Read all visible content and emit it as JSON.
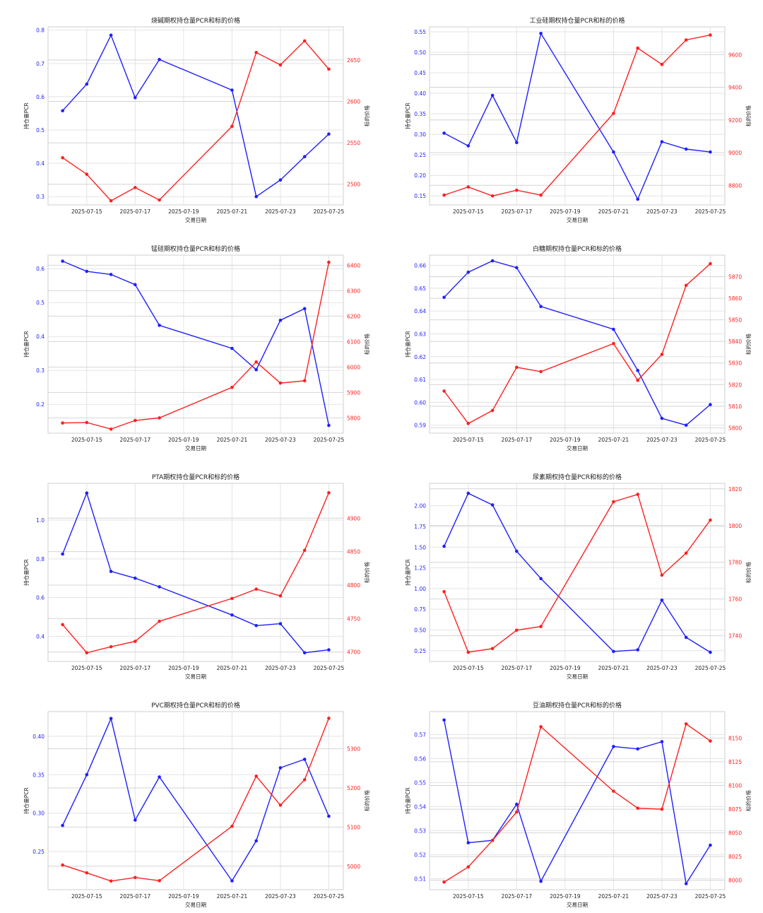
{
  "chart_data": [
    {
      "type": "line",
      "title": "烧碱期权持仓量PCR和标的价格",
      "xlabel": "交易日期",
      "ylabel_left": "持仓量PCR",
      "ylabel_right": "标的价格",
      "x": [
        "2025-07-14",
        "2025-07-15",
        "2025-07-16",
        "2025-07-17",
        "2025-07-18",
        "2025-07-21",
        "2025-07-22",
        "2025-07-23",
        "2025-07-24",
        "2025-07-25"
      ],
      "xticks": [
        "2025-07-15",
        "2025-07-17",
        "2025-07-19",
        "2025-07-21",
        "2025-07-23",
        "2025-07-25"
      ],
      "yticks_left": [
        "0.3",
        "0.4",
        "0.5",
        "0.6",
        "0.7",
        "0.8"
      ],
      "yticks_right": [
        "2500",
        "2550",
        "2600",
        "2650"
      ],
      "ylim_left": [
        0.275,
        0.81
      ],
      "ylim_right": [
        2475,
        2690
      ],
      "grid": true,
      "series": [
        {
          "axis": "left",
          "color": "#1f1fff",
          "values": [
            0.558,
            0.638,
            0.785,
            0.597,
            0.712,
            0.62,
            0.3,
            0.35,
            0.42,
            0.488
          ]
        },
        {
          "axis": "right",
          "color": "#ff1f1f",
          "values": [
            2532,
            2512,
            2480,
            2496,
            2481,
            2570,
            2659,
            2644,
            2673,
            2639
          ]
        }
      ]
    },
    {
      "type": "line",
      "title": "工业硅期权持仓量PCR和标的价格",
      "xlabel": "交易日期",
      "ylabel_left": "持仓量PCR",
      "ylabel_right": "标的价格",
      "x": [
        "2025-07-14",
        "2025-07-15",
        "2025-07-16",
        "2025-07-17",
        "2025-07-18",
        "2025-07-21",
        "2025-07-22",
        "2025-07-23",
        "2025-07-24",
        "2025-07-25"
      ],
      "xticks": [
        "2025-07-15",
        "2025-07-17",
        "2025-07-19",
        "2025-07-21",
        "2025-07-23",
        "2025-07-25"
      ],
      "yticks_left": [
        "0.15",
        "0.20",
        "0.25",
        "0.30",
        "0.35",
        "0.40",
        "0.45",
        "0.50",
        "0.55"
      ],
      "yticks_right": [
        "8800",
        "9000",
        "9200",
        "9400",
        "9600"
      ],
      "ylim_left": [
        0.128,
        0.562
      ],
      "ylim_right": [
        8680,
        9770
      ],
      "grid": true,
      "series": [
        {
          "axis": "left",
          "color": "#1f1fff",
          "values": [
            0.303,
            0.272,
            0.395,
            0.28,
            0.546,
            0.257,
            0.142,
            0.282,
            0.264,
            0.257
          ]
        },
        {
          "axis": "right",
          "color": "#ff1f1f",
          "values": [
            8740,
            8790,
            8735,
            8770,
            8740,
            9240,
            9640,
            9540,
            9690,
            9720
          ]
        }
      ]
    },
    {
      "type": "line",
      "title": "锰硅期权持仓量PCR和标的价格",
      "xlabel": "交易日期",
      "ylabel_left": "持仓量PCR",
      "ylabel_right": "标的价格",
      "x": [
        "2025-07-14",
        "2025-07-15",
        "2025-07-16",
        "2025-07-17",
        "2025-07-18",
        "2025-07-21",
        "2025-07-22",
        "2025-07-23",
        "2025-07-24",
        "2025-07-25"
      ],
      "xticks": [
        "2025-07-15",
        "2025-07-17",
        "2025-07-19",
        "2025-07-21",
        "2025-07-23",
        "2025-07-25"
      ],
      "yticks_left": [
        "0.2",
        "0.3",
        "0.4",
        "0.5",
        "0.6"
      ],
      "yticks_right": [
        "5800",
        "5900",
        "6000",
        "6100",
        "6200",
        "6300",
        "6400"
      ],
      "ylim_left": [
        0.115,
        0.64
      ],
      "ylim_right": [
        5740,
        6440
      ],
      "grid": true,
      "series": [
        {
          "axis": "left",
          "color": "#1f1fff",
          "values": [
            0.622,
            0.592,
            0.583,
            0.553,
            0.433,
            0.365,
            0.302,
            0.448,
            0.482,
            0.138
          ]
        },
        {
          "axis": "right",
          "color": "#ff1f1f",
          "values": [
            5780,
            5782,
            5756,
            5790,
            5800,
            5920,
            6020,
            5937,
            5946,
            6412
          ]
        }
      ]
    },
    {
      "type": "line",
      "title": "白糖期权持仓量PCR和标的价格",
      "xlabel": "交易日期",
      "ylabel_left": "持仓量PCR",
      "ylabel_right": "标的价格",
      "x": [
        "2025-07-14",
        "2025-07-15",
        "2025-07-16",
        "2025-07-17",
        "2025-07-18",
        "2025-07-21",
        "2025-07-22",
        "2025-07-23",
        "2025-07-24",
        "2025-07-25"
      ],
      "xticks": [
        "2025-07-15",
        "2025-07-17",
        "2025-07-19",
        "2025-07-21",
        "2025-07-23",
        "2025-07-25"
      ],
      "yticks_left": [
        "0.59",
        "0.60",
        "0.61",
        "0.62",
        "0.63",
        "0.64",
        "0.65",
        "0.66"
      ],
      "yticks_right": [
        "5800",
        "5810",
        "5820",
        "5830",
        "5840",
        "5850",
        "5860",
        "5870"
      ],
      "ylim_left": [
        0.5865,
        0.6645
      ],
      "ylim_right": [
        5797.5,
        5880
      ],
      "grid": true,
      "series": [
        {
          "axis": "left",
          "color": "#1f1fff",
          "values": [
            0.646,
            0.657,
            0.662,
            0.659,
            0.642,
            0.632,
            0.614,
            0.593,
            0.59,
            0.599
          ]
        },
        {
          "axis": "right",
          "color": "#ff1f1f",
          "values": [
            5817,
            5802,
            5808,
            5828,
            5826,
            5839,
            5822,
            5834,
            5866,
            5876
          ]
        }
      ]
    },
    {
      "type": "line",
      "title": "PTA期权持仓量PCR和标的价格",
      "xlabel": "交易日期",
      "ylabel_left": "持仓量PCR",
      "ylabel_right": "标的价格",
      "x": [
        "2025-07-14",
        "2025-07-15",
        "2025-07-16",
        "2025-07-17",
        "2025-07-18",
        "2025-07-21",
        "2025-07-22",
        "2025-07-23",
        "2025-07-24",
        "2025-07-25"
      ],
      "xticks": [
        "2025-07-15",
        "2025-07-17",
        "2025-07-19",
        "2025-07-21",
        "2025-07-23",
        "2025-07-25"
      ],
      "yticks_left": [
        "0.4",
        "0.6",
        "0.8",
        "1.0"
      ],
      "yticks_right": [
        "4700",
        "4750",
        "4800",
        "4850",
        "4900"
      ],
      "ylim_left": [
        0.27,
        1.19
      ],
      "ylim_right": [
        4686,
        4952
      ],
      "grid": true,
      "series": [
        {
          "axis": "left",
          "color": "#1f1fff",
          "values": [
            0.825,
            1.14,
            0.735,
            0.7,
            0.655,
            0.51,
            0.455,
            0.465,
            0.315,
            0.33
          ]
        },
        {
          "axis": "right",
          "color": "#ff1f1f",
          "values": [
            4741,
            4699,
            4708,
            4716,
            4746,
            4780,
            4794,
            4784,
            4852,
            4938
          ]
        }
      ]
    },
    {
      "type": "line",
      "title": "尿素期权持仓量PCR和标的价格",
      "xlabel": "交易日期",
      "ylabel_left": "持仓量PCR",
      "ylabel_right": "标的价格",
      "x": [
        "2025-07-14",
        "2025-07-15",
        "2025-07-16",
        "2025-07-17",
        "2025-07-18",
        "2025-07-21",
        "2025-07-22",
        "2025-07-23",
        "2025-07-24",
        "2025-07-25"
      ],
      "xticks": [
        "2025-07-15",
        "2025-07-17",
        "2025-07-19",
        "2025-07-21",
        "2025-07-23",
        "2025-07-25"
      ],
      "yticks_left": [
        "0.25",
        "0.50",
        "0.75",
        "1.00",
        "1.25",
        "1.50",
        "1.75",
        "2.00"
      ],
      "yticks_right": [
        "1740",
        "1760",
        "1780",
        "1800",
        "1820"
      ],
      "ylim_left": [
        0.12,
        2.27
      ],
      "ylim_right": [
        1726,
        1823
      ],
      "grid": true,
      "series": [
        {
          "axis": "left",
          "color": "#1f1fff",
          "values": [
            1.51,
            2.15,
            2.01,
            1.45,
            1.12,
            0.24,
            0.26,
            0.86,
            0.41,
            0.23
          ]
        },
        {
          "axis": "right",
          "color": "#ff1f1f",
          "values": [
            1764,
            1731,
            1733,
            1743,
            1745,
            1813,
            1817,
            1773,
            1785,
            1803
          ]
        }
      ]
    },
    {
      "type": "line",
      "title": "PVC期权持仓量PCR和标的价格",
      "xlabel": "交易日期",
      "ylabel_left": "持仓量PCR",
      "ylabel_right": "标的价格",
      "x": [
        "2025-07-14",
        "2025-07-15",
        "2025-07-16",
        "2025-07-17",
        "2025-07-18",
        "2025-07-21",
        "2025-07-22",
        "2025-07-23",
        "2025-07-24",
        "2025-07-25"
      ],
      "xticks": [
        "2025-07-15",
        "2025-07-17",
        "2025-07-19",
        "2025-07-21",
        "2025-07-23",
        "2025-07-25"
      ],
      "yticks_left": [
        "0.25",
        "0.30",
        "0.35",
        "0.40"
      ],
      "yticks_right": [
        "5000",
        "5100",
        "5200",
        "5300"
      ],
      "ylim_left": [
        0.2005,
        0.432
      ],
      "ylim_right": [
        4940,
        5395
      ],
      "grid": true,
      "series": [
        {
          "axis": "left",
          "color": "#1f1fff",
          "values": [
            0.284,
            0.35,
            0.423,
            0.291,
            0.347,
            0.212,
            0.264,
            0.359,
            0.37,
            0.296
          ]
        },
        {
          "axis": "right",
          "color": "#ff1f1f",
          "values": [
            5003,
            4983,
            4962,
            4971,
            4963,
            5102,
            5230,
            5156,
            5221,
            5378
          ]
        }
      ]
    },
    {
      "type": "line",
      "title": "豆油期权持仓量PCR和标的价格",
      "xlabel": "交易日期",
      "ylabel_left": "持仓量PCR",
      "ylabel_right": "标的价格",
      "x": [
        "2025-07-14",
        "2025-07-15",
        "2025-07-16",
        "2025-07-17",
        "2025-07-18",
        "2025-07-21",
        "2025-07-22",
        "2025-07-23",
        "2025-07-24",
        "2025-07-25"
      ],
      "xticks": [
        "2025-07-15",
        "2025-07-17",
        "2025-07-19",
        "2025-07-21",
        "2025-07-23",
        "2025-07-25"
      ],
      "yticks_left": [
        "0.51",
        "0.52",
        "0.53",
        "0.54",
        "0.55",
        "0.56",
        "0.57"
      ],
      "yticks_right": [
        "8000",
        "8025",
        "8050",
        "8075",
        "8100",
        "8125",
        "8150"
      ],
      "ylim_left": [
        0.5055,
        0.5795
      ],
      "ylim_right": [
        7990,
        8178
      ],
      "grid": true,
      "series": [
        {
          "axis": "left",
          "color": "#1f1fff",
          "values": [
            0.576,
            0.525,
            0.526,
            0.541,
            0.509,
            0.565,
            0.564,
            0.567,
            0.508,
            0.524
          ]
        },
        {
          "axis": "right",
          "color": "#ff1f1f",
          "values": [
            7998,
            8014,
            8042,
            8072,
            8162,
            8094,
            8076,
            8075,
            8165,
            8147
          ]
        }
      ]
    }
  ]
}
